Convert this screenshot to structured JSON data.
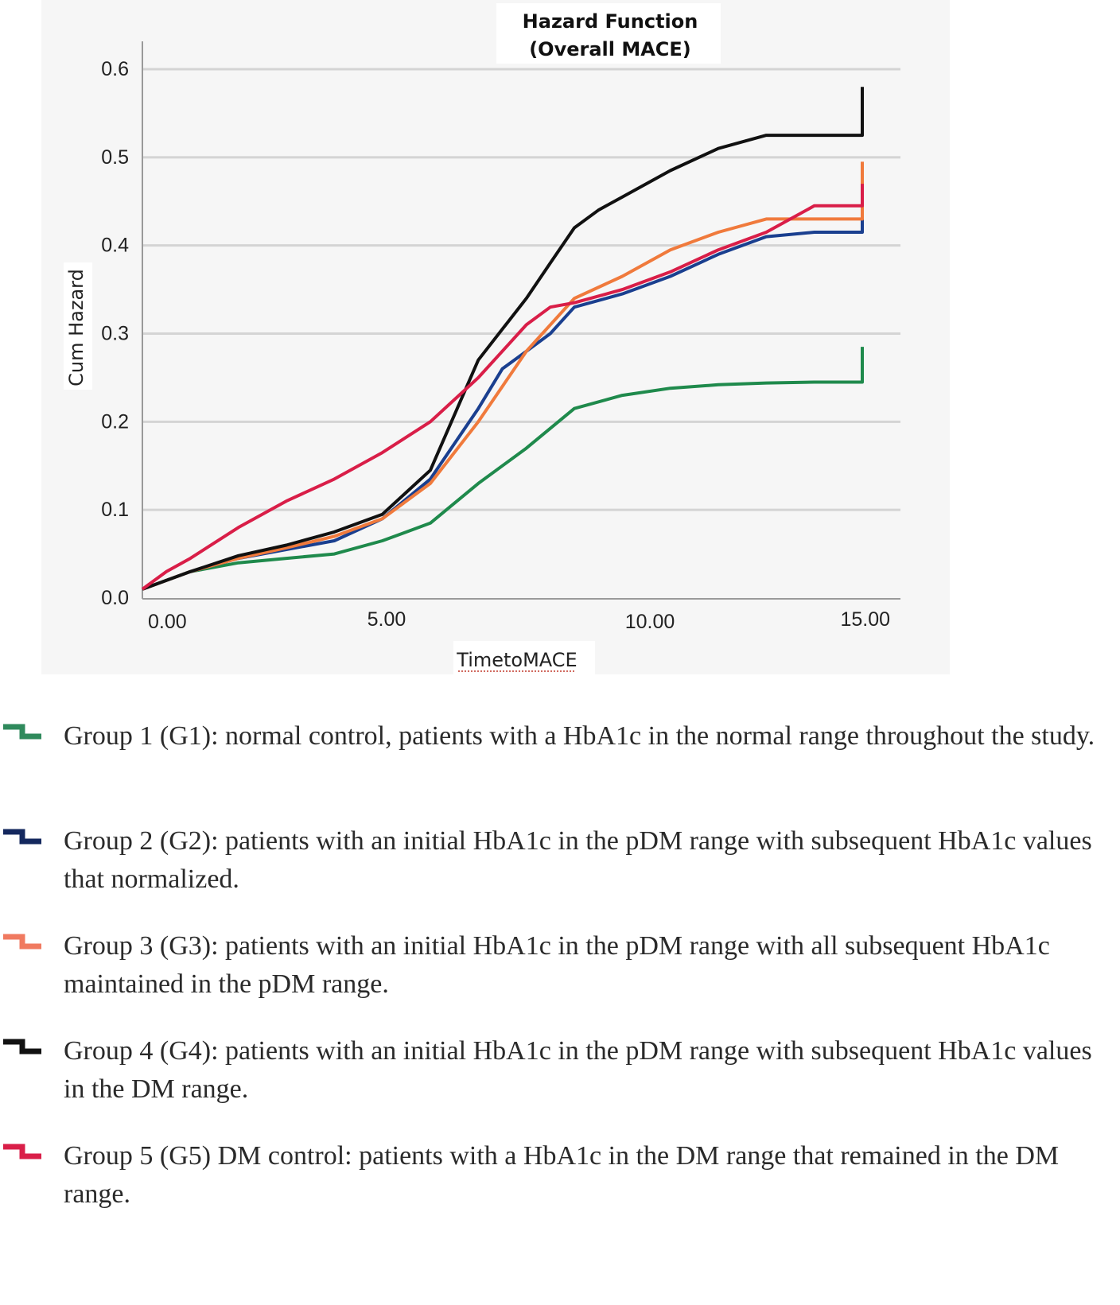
{
  "chart_data": {
    "type": "line",
    "title_lines": [
      "Hazard Function",
      "(Overall MACE)"
    ],
    "xlabel": "TimetoMACE",
    "ylabel": "Cum Hazard",
    "xlim": [
      0,
      15.5
    ],
    "ylim": [
      0,
      0.6
    ],
    "x_ticks": [
      0,
      5,
      10,
      15
    ],
    "x_tick_labels": [
      "0.00",
      "5.00",
      "10.00",
      "15.00"
    ],
    "y_ticks": [
      0,
      0.1,
      0.2,
      0.3,
      0.4,
      0.5,
      0.6
    ],
    "y_tick_labels": [
      "0.0",
      "0.1",
      "0.2",
      "0.3",
      "0.4",
      "0.5",
      "0.6"
    ],
    "grid": true,
    "series": [
      {
        "name": "G1",
        "color": "#1f8a4c",
        "x": [
          0,
          0.5,
          1,
          2,
          3,
          4,
          5,
          6,
          7,
          8,
          9,
          10,
          11,
          12,
          13,
          14,
          15
        ],
        "y": [
          0.01,
          0.02,
          0.03,
          0.04,
          0.045,
          0.05,
          0.065,
          0.085,
          0.13,
          0.17,
          0.215,
          0.23,
          0.238,
          0.242,
          0.244,
          0.245,
          0.245
        ],
        "end_jump": 0.285
      },
      {
        "name": "G2",
        "color": "#1a3f8f",
        "x": [
          0,
          1,
          2,
          3,
          4,
          5,
          6,
          7,
          7.5,
          8,
          8.5,
          9,
          10,
          11,
          12,
          13,
          14,
          15
        ],
        "y": [
          0.01,
          0.03,
          0.045,
          0.055,
          0.065,
          0.09,
          0.135,
          0.215,
          0.26,
          0.28,
          0.3,
          0.33,
          0.345,
          0.365,
          0.39,
          0.41,
          0.415,
          0.415
        ],
        "end_jump": 0.43
      },
      {
        "name": "G3",
        "color": "#f07a3c",
        "x": [
          0,
          1,
          2,
          3,
          4,
          5,
          6,
          7,
          8,
          9,
          10,
          11,
          12,
          13,
          14,
          15
        ],
        "y": [
          0.01,
          0.03,
          0.045,
          0.057,
          0.07,
          0.09,
          0.13,
          0.2,
          0.28,
          0.34,
          0.365,
          0.395,
          0.415,
          0.43,
          0.43,
          0.43
        ],
        "end_jump": 0.495
      },
      {
        "name": "G4",
        "color": "#111111",
        "x": [
          0,
          1,
          2,
          3,
          4,
          5,
          6,
          7,
          8,
          8.5,
          9,
          9.5,
          10,
          11,
          12,
          13,
          14,
          15
        ],
        "y": [
          0.01,
          0.03,
          0.048,
          0.06,
          0.075,
          0.095,
          0.145,
          0.27,
          0.34,
          0.38,
          0.42,
          0.44,
          0.455,
          0.485,
          0.51,
          0.525,
          0.525,
          0.525
        ],
        "end_jump": 0.58
      },
      {
        "name": "G5",
        "color": "#d91e48",
        "x": [
          0,
          0.5,
          1,
          2,
          3,
          4,
          5,
          6,
          7,
          8,
          8.5,
          9,
          10,
          11,
          12,
          13,
          14,
          15
        ],
        "y": [
          0.01,
          0.03,
          0.045,
          0.08,
          0.11,
          0.135,
          0.165,
          0.2,
          0.25,
          0.31,
          0.33,
          0.335,
          0.35,
          0.37,
          0.395,
          0.415,
          0.445,
          0.445
        ],
        "end_jump": 0.47
      }
    ]
  },
  "legend": [
    {
      "color": "#2f8a5c",
      "text": "Group 1 (G1): normal control, patients with a HbA1c in the normal range throughout the study."
    },
    {
      "color": "#14285e",
      "text": "Group 2 (G2): patients with an initial HbA1c in the pDM range with subsequent HbA1c values that normalized."
    },
    {
      "color": "#f07a60",
      "text": "Group 3 (G3): patients with an initial HbA1c in the pDM range with all subsequent HbA1c maintained in the pDM range."
    },
    {
      "color": "#111111",
      "text": "Group 4 (G4): patients with an initial HbA1c in the pDM range with subsequent HbA1c values in the DM range."
    },
    {
      "color": "#d91e48",
      "text": "Group 5 (G5) DM control: patients with a HbA1c in the DM range that remained in the DM range."
    }
  ]
}
